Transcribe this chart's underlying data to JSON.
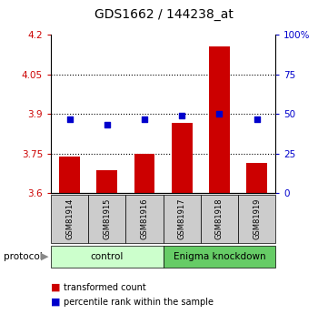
{
  "title": "GDS1662 / 144238_at",
  "samples": [
    "GSM81914",
    "GSM81915",
    "GSM81916",
    "GSM81917",
    "GSM81918",
    "GSM81919"
  ],
  "bar_values": [
    3.74,
    3.685,
    3.75,
    3.865,
    4.155,
    3.715
  ],
  "bar_bottom": 3.6,
  "blue_values": [
    3.878,
    3.858,
    3.878,
    3.892,
    3.9,
    3.878
  ],
  "ylim_left": [
    3.6,
    4.2
  ],
  "ylim_right": [
    0,
    100
  ],
  "yticks_left": [
    3.6,
    3.75,
    3.9,
    4.05,
    4.2
  ],
  "yticks_right": [
    0,
    25,
    50,
    75,
    100
  ],
  "ytick_labels_left": [
    "3.6",
    "3.75",
    "3.9",
    "4.05",
    "4.2"
  ],
  "ytick_labels_right": [
    "0",
    "25",
    "50",
    "75",
    "100%"
  ],
  "grid_lines": [
    3.75,
    3.9,
    4.05
  ],
  "bar_color": "#cc0000",
  "blue_color": "#0000cc",
  "control_label": "control",
  "knockdown_label": "Enigma knockdown",
  "protocol_label": "protocol",
  "legend_bar_label": "transformed count",
  "legend_blue_label": "percentile rank within the sample",
  "control_bg": "#ccffcc",
  "knockdown_bg": "#66cc66",
  "sample_bg": "#cccccc",
  "left_tick_color": "#cc0000",
  "right_tick_color": "#0000cc",
  "title_fontsize": 10
}
